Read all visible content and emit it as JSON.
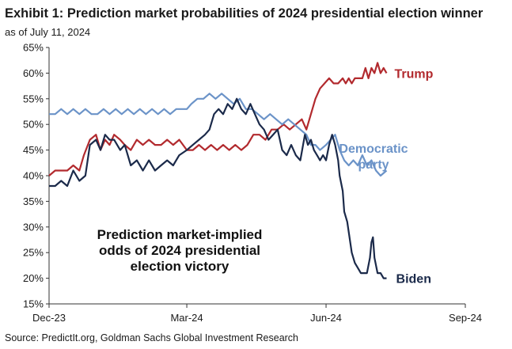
{
  "header": {
    "title": "Exhibit 1: Prediction market probabilities of 2024 presidential election winner",
    "subtitle": "as of July 11, 2024"
  },
  "footer": {
    "source": "Source: PredictIt.org, Goldman Sachs Global Investment Research"
  },
  "chart_data": {
    "type": "line",
    "title": "Exhibit 1: Prediction market probabilities of 2024 presidential election winner",
    "subtitle": "as of July 11, 2024",
    "xlabel": "",
    "ylabel": "",
    "x_tick_labels": [
      "Dec-23",
      "Mar-24",
      "Jun-24",
      "Sep-24"
    ],
    "x_tick_dates": [
      "2023-12-01",
      "2024-03-01",
      "2024-06-01",
      "2024-09-01"
    ],
    "xlim": [
      "2023-12-01",
      "2024-09-01"
    ],
    "y_tick_labels": [
      "15%",
      "20%",
      "25%",
      "30%",
      "35%",
      "40%",
      "45%",
      "50%",
      "55%",
      "60%",
      "65%"
    ],
    "ylim": [
      15,
      65
    ],
    "grid": false,
    "legend": "none",
    "annotations": [
      {
        "text": "Prediction market-implied",
        "position": "lower-center"
      },
      {
        "text": "odds of 2024 presidential",
        "position": "lower-center"
      },
      {
        "text": "election victory",
        "position": "lower-center"
      }
    ],
    "series": [
      {
        "name": "Trump",
        "color": "#b22a2e",
        "points": [
          [
            "2023-12-01",
            40
          ],
          [
            "2023-12-05",
            41
          ],
          [
            "2023-12-09",
            41
          ],
          [
            "2023-12-13",
            41
          ],
          [
            "2023-12-17",
            42
          ],
          [
            "2023-12-21",
            41
          ],
          [
            "2023-12-24",
            44
          ],
          [
            "2023-12-28",
            47
          ],
          [
            "2024-01-01",
            48
          ],
          [
            "2024-01-04",
            45
          ],
          [
            "2024-01-07",
            47
          ],
          [
            "2024-01-10",
            46
          ],
          [
            "2024-01-13",
            48
          ],
          [
            "2024-01-17",
            47
          ],
          [
            "2024-01-20",
            46
          ],
          [
            "2024-01-24",
            45
          ],
          [
            "2024-01-28",
            47
          ],
          [
            "2024-02-01",
            46
          ],
          [
            "2024-02-05",
            47
          ],
          [
            "2024-02-09",
            46
          ],
          [
            "2024-02-13",
            46
          ],
          [
            "2024-02-17",
            47
          ],
          [
            "2024-02-21",
            46
          ],
          [
            "2024-02-25",
            47
          ],
          [
            "2024-03-01",
            45
          ],
          [
            "2024-03-05",
            45
          ],
          [
            "2024-03-09",
            46
          ],
          [
            "2024-03-13",
            45
          ],
          [
            "2024-03-17",
            46
          ],
          [
            "2024-03-21",
            45
          ],
          [
            "2024-03-25",
            46
          ],
          [
            "2024-03-29",
            45
          ],
          [
            "2024-04-02",
            46
          ],
          [
            "2024-04-06",
            45
          ],
          [
            "2024-04-10",
            46
          ],
          [
            "2024-04-14",
            48
          ],
          [
            "2024-04-18",
            48
          ],
          [
            "2024-04-22",
            47
          ],
          [
            "2024-04-26",
            49
          ],
          [
            "2024-04-30",
            49
          ],
          [
            "2024-05-04",
            50
          ],
          [
            "2024-05-08",
            49
          ],
          [
            "2024-05-12",
            50
          ],
          [
            "2024-05-16",
            51
          ],
          [
            "2024-05-19",
            49
          ],
          [
            "2024-05-22",
            52
          ],
          [
            "2024-05-25",
            55
          ],
          [
            "2024-05-28",
            57
          ],
          [
            "2024-05-31",
            58
          ],
          [
            "2024-06-03",
            59
          ],
          [
            "2024-06-06",
            58
          ],
          [
            "2024-06-09",
            58
          ],
          [
            "2024-06-12",
            59
          ],
          [
            "2024-06-14",
            58
          ],
          [
            "2024-06-16",
            59
          ],
          [
            "2024-06-18",
            58
          ],
          [
            "2024-06-20",
            59
          ],
          [
            "2024-06-22",
            59
          ],
          [
            "2024-06-25",
            59
          ],
          [
            "2024-06-27",
            61
          ],
          [
            "2024-06-29",
            59
          ],
          [
            "2024-07-01",
            61
          ],
          [
            "2024-07-03",
            60
          ],
          [
            "2024-07-05",
            62
          ],
          [
            "2024-07-07",
            60
          ],
          [
            "2024-07-09",
            61
          ],
          [
            "2024-07-11",
            60
          ]
        ]
      },
      {
        "name": "Democratic party",
        "color": "#6b93c8",
        "points": [
          [
            "2023-12-01",
            52
          ],
          [
            "2023-12-05",
            52
          ],
          [
            "2023-12-09",
            53
          ],
          [
            "2023-12-13",
            52
          ],
          [
            "2023-12-17",
            53
          ],
          [
            "2023-12-21",
            52
          ],
          [
            "2023-12-25",
            53
          ],
          [
            "2023-12-29",
            52
          ],
          [
            "2024-01-02",
            52
          ],
          [
            "2024-01-06",
            53
          ],
          [
            "2024-01-10",
            52
          ],
          [
            "2024-01-14",
            53
          ],
          [
            "2024-01-18",
            52
          ],
          [
            "2024-01-22",
            53
          ],
          [
            "2024-01-26",
            52
          ],
          [
            "2024-01-30",
            53
          ],
          [
            "2024-02-03",
            52
          ],
          [
            "2024-02-07",
            53
          ],
          [
            "2024-02-11",
            52
          ],
          [
            "2024-02-15",
            53
          ],
          [
            "2024-02-19",
            52
          ],
          [
            "2024-02-23",
            53
          ],
          [
            "2024-02-27",
            53
          ],
          [
            "2024-03-01",
            53
          ],
          [
            "2024-03-04",
            54
          ],
          [
            "2024-03-08",
            55
          ],
          [
            "2024-03-12",
            55
          ],
          [
            "2024-03-16",
            56
          ],
          [
            "2024-03-20",
            55
          ],
          [
            "2024-03-24",
            56
          ],
          [
            "2024-03-28",
            55
          ],
          [
            "2024-04-01",
            54
          ],
          [
            "2024-04-05",
            55
          ],
          [
            "2024-04-09",
            53
          ],
          [
            "2024-04-13",
            53
          ],
          [
            "2024-04-17",
            52
          ],
          [
            "2024-04-21",
            51
          ],
          [
            "2024-04-25",
            52
          ],
          [
            "2024-04-29",
            51
          ],
          [
            "2024-05-03",
            50
          ],
          [
            "2024-05-07",
            51
          ],
          [
            "2024-05-11",
            50
          ],
          [
            "2024-05-15",
            49
          ],
          [
            "2024-05-19",
            48
          ],
          [
            "2024-05-22",
            46
          ],
          [
            "2024-05-25",
            46
          ],
          [
            "2024-05-28",
            45
          ],
          [
            "2024-06-01",
            46
          ],
          [
            "2024-06-04",
            47
          ],
          [
            "2024-06-07",
            48
          ],
          [
            "2024-06-10",
            45
          ],
          [
            "2024-06-13",
            43
          ],
          [
            "2024-06-16",
            42
          ],
          [
            "2024-06-19",
            43
          ],
          [
            "2024-06-22",
            42
          ],
          [
            "2024-06-25",
            44
          ],
          [
            "2024-06-28",
            42
          ],
          [
            "2024-07-01",
            43
          ],
          [
            "2024-07-04",
            41
          ],
          [
            "2024-07-07",
            40
          ],
          [
            "2024-07-11",
            41
          ]
        ]
      },
      {
        "name": "Biden",
        "color": "#1b2a4a",
        "points": [
          [
            "2023-12-01",
            38
          ],
          [
            "2023-12-05",
            38
          ],
          [
            "2023-12-09",
            39
          ],
          [
            "2023-12-13",
            38
          ],
          [
            "2023-12-17",
            41
          ],
          [
            "2023-12-21",
            39
          ],
          [
            "2023-12-25",
            40
          ],
          [
            "2023-12-28",
            46
          ],
          [
            "2024-01-01",
            47
          ],
          [
            "2024-01-04",
            45
          ],
          [
            "2024-01-07",
            48
          ],
          [
            "2024-01-10",
            47
          ],
          [
            "2024-01-13",
            47
          ],
          [
            "2024-01-17",
            45
          ],
          [
            "2024-01-20",
            46
          ],
          [
            "2024-01-24",
            42
          ],
          [
            "2024-01-28",
            43
          ],
          [
            "2024-02-01",
            41
          ],
          [
            "2024-02-05",
            43
          ],
          [
            "2024-02-09",
            41
          ],
          [
            "2024-02-13",
            42
          ],
          [
            "2024-02-17",
            43
          ],
          [
            "2024-02-21",
            42
          ],
          [
            "2024-02-25",
            44
          ],
          [
            "2024-03-01",
            45
          ],
          [
            "2024-03-05",
            46
          ],
          [
            "2024-03-09",
            47
          ],
          [
            "2024-03-13",
            48
          ],
          [
            "2024-03-16",
            49
          ],
          [
            "2024-03-19",
            52
          ],
          [
            "2024-03-22",
            53
          ],
          [
            "2024-03-25",
            52
          ],
          [
            "2024-03-28",
            54
          ],
          [
            "2024-03-31",
            53
          ],
          [
            "2024-04-03",
            55
          ],
          [
            "2024-04-06",
            53
          ],
          [
            "2024-04-09",
            52
          ],
          [
            "2024-04-12",
            54
          ],
          [
            "2024-04-15",
            52
          ],
          [
            "2024-04-18",
            50
          ],
          [
            "2024-04-21",
            49
          ],
          [
            "2024-04-24",
            47
          ],
          [
            "2024-04-27",
            48
          ],
          [
            "2024-04-30",
            49
          ],
          [
            "2024-05-03",
            45
          ],
          [
            "2024-05-06",
            44
          ],
          [
            "2024-05-09",
            46
          ],
          [
            "2024-05-12",
            44
          ],
          [
            "2024-05-15",
            43
          ],
          [
            "2024-05-18",
            48
          ],
          [
            "2024-05-20",
            46
          ],
          [
            "2024-05-22",
            47
          ],
          [
            "2024-05-24",
            45
          ],
          [
            "2024-05-26",
            44
          ],
          [
            "2024-05-28",
            43
          ],
          [
            "2024-05-30",
            44
          ],
          [
            "2024-06-01",
            43
          ],
          [
            "2024-06-03",
            46
          ],
          [
            "2024-06-05",
            48
          ],
          [
            "2024-06-07",
            46
          ],
          [
            "2024-06-09",
            43
          ],
          [
            "2024-06-10",
            40
          ],
          [
            "2024-06-12",
            37
          ],
          [
            "2024-06-13",
            33
          ],
          [
            "2024-06-15",
            31
          ],
          [
            "2024-06-16",
            29
          ],
          [
            "2024-06-18",
            25
          ],
          [
            "2024-06-20",
            23
          ],
          [
            "2024-06-22",
            22
          ],
          [
            "2024-06-24",
            21
          ],
          [
            "2024-06-26",
            21
          ],
          [
            "2024-06-28",
            21
          ],
          [
            "2024-06-30",
            24
          ],
          [
            "2024-07-01",
            27
          ],
          [
            "2024-07-02",
            28
          ],
          [
            "2024-07-03",
            24
          ],
          [
            "2024-07-05",
            21
          ],
          [
            "2024-07-07",
            21
          ],
          [
            "2024-07-09",
            20
          ],
          [
            "2024-07-11",
            20
          ]
        ]
      }
    ]
  }
}
